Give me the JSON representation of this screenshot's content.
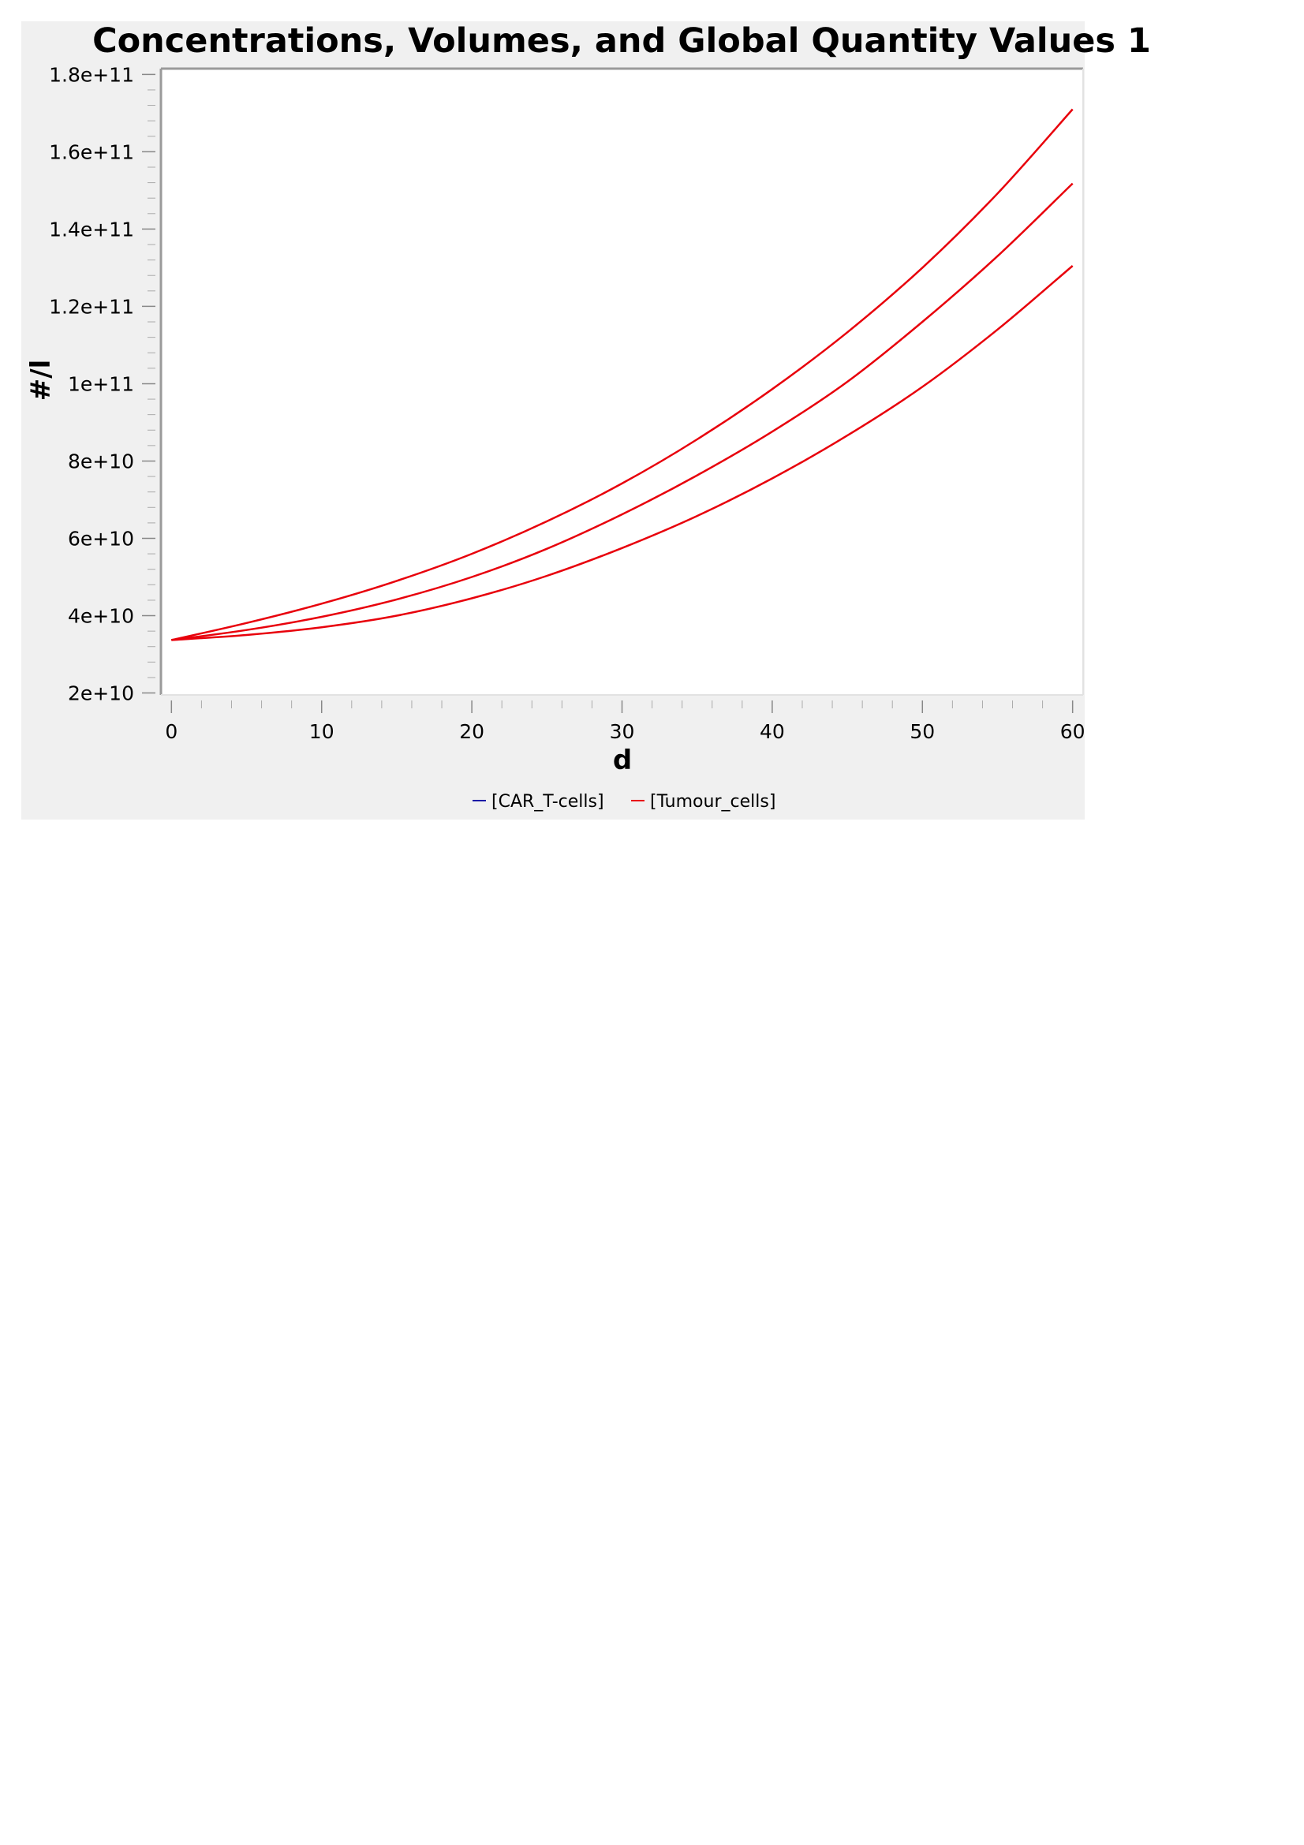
{
  "chart_data": {
    "type": "line",
    "title": "Concentrations, Volumes, and Global Quantity Values 1",
    "xlabel": "d",
    "ylabel": "#/l",
    "xlim": [
      -0.7,
      60.7
    ],
    "ylim": [
      19500000000,
      181500000000
    ],
    "x_ticks": [
      0,
      10,
      20,
      30,
      40,
      50,
      60
    ],
    "x_tick_labels": [
      "0",
      "10",
      "20",
      "30",
      "40",
      "50",
      "60"
    ],
    "y_ticks": [
      20000000000,
      40000000000,
      60000000000,
      80000000000,
      100000000000,
      120000000000,
      140000000000,
      160000000000,
      180000000000
    ],
    "y_tick_labels": [
      "2e+10",
      "4e+10",
      "6e+10",
      "8e+10",
      "1e+11",
      "1.2e+11",
      "1.4e+11",
      "1.6e+11",
      "1.8e+11"
    ],
    "grid": false,
    "legend_position": "bottom",
    "legend": [
      {
        "label": "[CAR_T-cells]",
        "color": "#1a1aa6"
      },
      {
        "label": "[Tumour_cells]",
        "color": "#e8000b"
      }
    ],
    "series_color": "#e8000b",
    "series": [
      {
        "x": [
          0,
          5,
          10,
          15,
          20,
          25,
          30,
          35,
          40,
          45,
          50,
          55,
          60
        ],
        "y": [
          33700000000,
          38100000000,
          43100000000,
          49000000000,
          56000000000,
          64400000000,
          74200000000,
          85600000000,
          98600000000,
          113300000000,
          130000000000,
          149200000000,
          171000000000
        ]
      },
      {
        "x": [
          0,
          5,
          10,
          15,
          20,
          25,
          30,
          35,
          40,
          45,
          50,
          55,
          60
        ],
        "y": [
          33700000000,
          36300000000,
          39700000000,
          44200000000,
          50000000000,
          57300000000,
          66200000000,
          76300000000,
          87600000000,
          100500000000,
          116000000000,
          133000000000,
          151800000000
        ]
      },
      {
        "x": [
          0,
          5,
          10,
          15,
          20,
          25,
          30,
          35,
          40,
          45,
          50,
          55,
          60
        ],
        "y": [
          33700000000,
          35000000000,
          37000000000,
          40000000000,
          44500000000,
          50300000000,
          57500000000,
          65800000000,
          75500000000,
          86600000000,
          99200000000,
          114000000000,
          130500000000
        ]
      }
    ]
  }
}
